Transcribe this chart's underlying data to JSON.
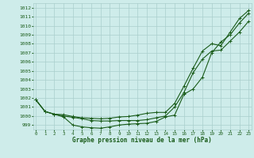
{
  "title": "Graphe pression niveau de la mer (hPa)",
  "background_color": "#ceecea",
  "grid_color": "#aacfcc",
  "line_color": "#1a5c1a",
  "x_ticks": [
    0,
    1,
    2,
    3,
    4,
    5,
    6,
    7,
    8,
    9,
    10,
    11,
    12,
    13,
    14,
    15,
    16,
    17,
    18,
    19,
    20,
    21,
    22,
    23
  ],
  "y_ticks": [
    999,
    1000,
    1001,
    1002,
    1003,
    1004,
    1005,
    1006,
    1007,
    1008,
    1009,
    1010,
    1011,
    1012
  ],
  "ylim": [
    998.5,
    1012.5
  ],
  "xlim": [
    -0.3,
    23.3
  ],
  "line1": [
    1001.8,
    1000.5,
    1000.2,
    999.9,
    999.0,
    998.8,
    998.7,
    998.65,
    998.8,
    999.0,
    999.1,
    999.15,
    999.2,
    999.4,
    999.9,
    1000.1,
    1002.4,
    1003.0,
    1004.3,
    1007.0,
    1008.2,
    1009.0,
    1010.3,
    1011.4
  ],
  "line2": [
    1001.8,
    1000.5,
    1000.2,
    1000.0,
    999.85,
    999.7,
    999.5,
    999.45,
    999.45,
    999.5,
    999.5,
    999.5,
    999.6,
    999.8,
    1000.0,
    1001.0,
    1002.6,
    1004.8,
    1006.3,
    1007.2,
    1007.3,
    1008.3,
    1009.3,
    1010.5
  ],
  "line3": [
    1001.8,
    1000.5,
    1000.2,
    1000.15,
    999.95,
    999.8,
    999.75,
    999.7,
    999.75,
    999.9,
    999.95,
    1000.1,
    1000.3,
    1000.4,
    1000.4,
    1001.4,
    1003.3,
    1005.3,
    1007.2,
    1008.0,
    1007.8,
    1009.3,
    1010.8,
    1011.7
  ]
}
